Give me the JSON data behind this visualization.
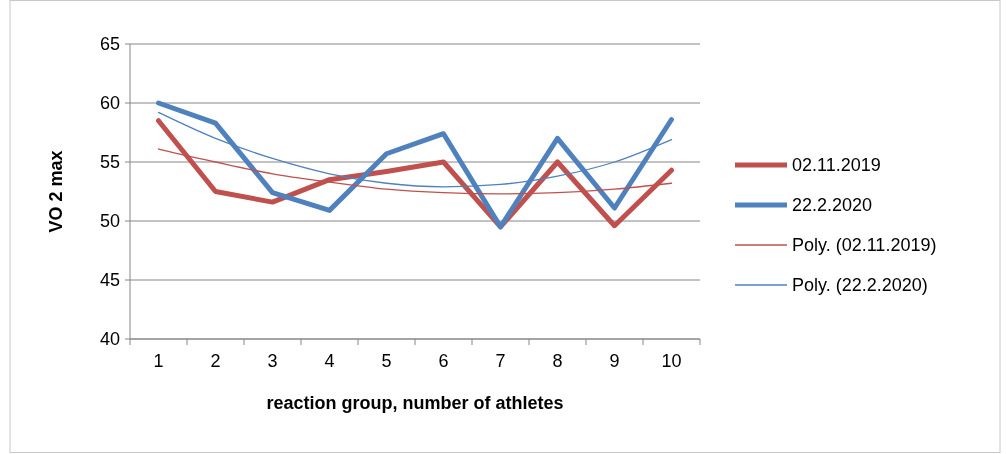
{
  "chart_data": {
    "type": "line",
    "xlabel": "reaction group, number of athletes",
    "ylabel": "VO 2 max",
    "categories": [
      "1",
      "2",
      "3",
      "4",
      "5",
      "6",
      "7",
      "8",
      "9",
      "10"
    ],
    "series": [
      {
        "name": "02.11.2019",
        "color": "#c0504d",
        "values": [
          58.5,
          52.5,
          51.6,
          53.5,
          54.2,
          55,
          49.5,
          55,
          49.6,
          54.3
        ]
      },
      {
        "name": "22.2.2020",
        "color": "#4f81bd",
        "values": [
          60,
          58.3,
          52.4,
          50.9,
          55.7,
          57.4,
          49.5,
          57,
          51.1,
          58.6
        ]
      },
      {
        "name": "Poly. (02.11.2019)",
        "color": "#c0504d",
        "values": [
          56.1,
          55,
          54,
          53.3,
          52.7,
          52.4,
          52.3,
          52.4,
          52.7,
          53.2
        ]
      },
      {
        "name": "Poly. (22.2.2020)",
        "color": "#4f81bd",
        "values": [
          59.2,
          57,
          55.3,
          54,
          53.2,
          52.9,
          53.1,
          53.8,
          55,
          56.9
        ]
      }
    ],
    "ylim": [
      40,
      65
    ],
    "yticks": [
      40,
      45,
      50,
      55,
      60,
      65
    ],
    "grid": "y",
    "legend": "right",
    "marker": "none"
  }
}
